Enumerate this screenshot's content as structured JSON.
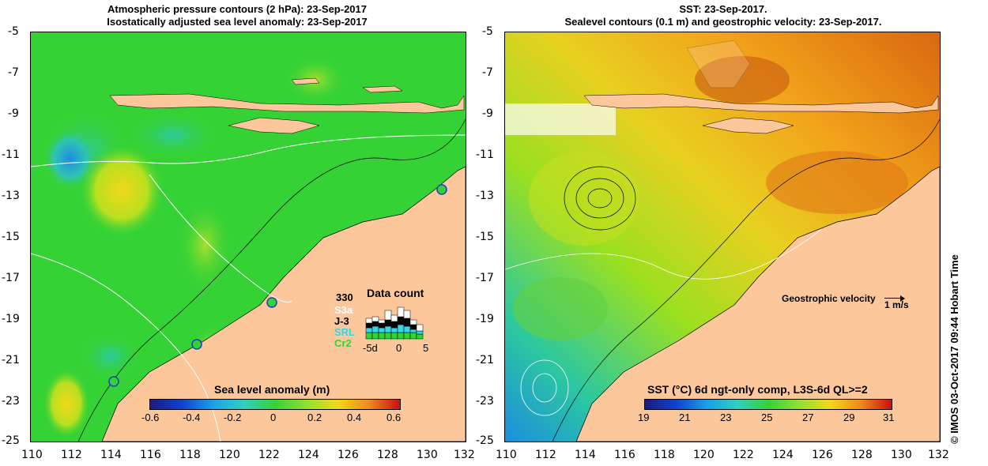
{
  "left_panel": {
    "title_line1": "Atmospheric pressure contours (2 hPa): 23-Sep-2017",
    "title_line2": "Isostatically adjusted sea level anomaly: 23-Sep-2017",
    "y_ticks": [
      "-5",
      "-7",
      "-9",
      "-11",
      "-13",
      "-15",
      "-17",
      "-19",
      "-21",
      "-23",
      "-25"
    ],
    "x_ticks": [
      "110",
      "112",
      "114",
      "116",
      "118",
      "120",
      "122",
      "124",
      "126",
      "128",
      "130",
      "132"
    ],
    "colorbar": {
      "title": "Sea level anomaly (m)",
      "ticks": [
        "-0.6",
        "-0.4",
        "-0.2",
        "0",
        "0.2",
        "0.4",
        "0.6"
      ]
    },
    "data_count": {
      "title": "Data count",
      "count": "330",
      "missions": [
        {
          "name": "S3a",
          "color": "#ffffff"
        },
        {
          "name": "J-3",
          "color": "#000000"
        },
        {
          "name": "SRL",
          "color": "#36d6e6"
        },
        {
          "name": "Cr2",
          "color": "#2fd62f"
        }
      ],
      "x_ticks": [
        "-5d",
        "0",
        "5"
      ]
    }
  },
  "right_panel": {
    "title_line1": "SST: 23-Sep-2017.",
    "title_line2": "Sealevel contours (0.1 m) and geostrophic velocity: 23-Sep-2017.",
    "y_ticks": [
      "-5",
      "-7",
      "-9",
      "-11",
      "-13",
      "-15",
      "-17",
      "-19",
      "-21",
      "-23",
      "-25"
    ],
    "x_ticks": [
      "110",
      "112",
      "114",
      "116",
      "118",
      "120",
      "122",
      "124",
      "126",
      "128",
      "130",
      "132"
    ],
    "velocity_label": "Geostrophic velocity",
    "velocity_scale": "1 m/s",
    "colorbar": {
      "title": "SST (°C) 6d ngt-only comp, L3S-6d QL>=2",
      "ticks": [
        "19",
        "21",
        "23",
        "25",
        "27",
        "29",
        "31"
      ]
    }
  },
  "footer": "© IMOS 03-Oct-2017 09:44 Hobart Time",
  "colors": {
    "land": "#fcc89b",
    "sla_ocean": "#35d235",
    "sst_ocean": "#f2a21a"
  }
}
